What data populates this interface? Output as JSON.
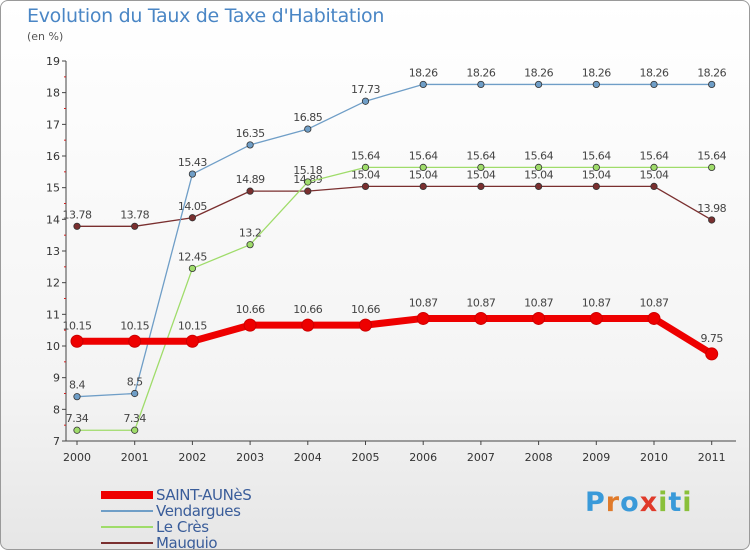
{
  "title": "Evolution du Taux de Taxe d'Habitation",
  "unit": "(en %)",
  "logo": {
    "text": "Proxiti",
    "colors": [
      "#3a9ad9",
      "#e07a2a",
      "#3a9ad9",
      "#e03a2a",
      "#8ac03a",
      "#3a9ad9",
      "#8ac03a"
    ]
  },
  "chart_data": {
    "type": "line",
    "x": [
      "2000",
      "2001",
      "2002",
      "2003",
      "2004",
      "2005",
      "2006",
      "2007",
      "2008",
      "2009",
      "2010",
      "2011"
    ],
    "ylim": [
      7,
      19
    ],
    "yticks": [
      "7",
      "8",
      "9",
      "10",
      "11",
      "12",
      "13",
      "14",
      "15",
      "16",
      "17",
      "18",
      "19"
    ],
    "grid": false,
    "legend_position": "bottom-left",
    "series": [
      {
        "name": "SAINT-AUNèS",
        "color": "#ee0000",
        "values": [
          10.15,
          10.15,
          10.15,
          10.66,
          10.66,
          10.66,
          10.87,
          10.87,
          10.87,
          10.87,
          10.87,
          9.75
        ],
        "labels": [
          "10.15",
          "10.15",
          "10.15",
          "10.66",
          "10.66",
          "10.66",
          "10.87",
          "10.87",
          "10.87",
          "10.87",
          "10.87",
          "9.75"
        ]
      },
      {
        "name": "Vendargues",
        "color": "#6f9ec7",
        "values": [
          8.4,
          8.5,
          15.43,
          16.35,
          16.85,
          17.73,
          18.26,
          18.26,
          18.26,
          18.26,
          18.26,
          18.26
        ],
        "labels": [
          "8.4",
          "8.5",
          "15.43",
          "16.35",
          "16.85",
          "17.73",
          "18.26",
          "18.26",
          "18.26",
          "18.26",
          "18.26",
          "18.26"
        ]
      },
      {
        "name": "Le Crès",
        "color": "#9fdc6a",
        "values": [
          7.34,
          7.34,
          12.45,
          13.2,
          15.18,
          15.64,
          15.64,
          15.64,
          15.64,
          15.64,
          15.64,
          15.64
        ],
        "labels": [
          "7.34",
          "7.34",
          "12.45",
          "13.2",
          "15.18",
          "15.64",
          "15.64",
          "15.64",
          "15.64",
          "15.64",
          "15.64",
          "15.64"
        ]
      },
      {
        "name": "Mauguio",
        "color": "#7a2f2f",
        "values": [
          13.78,
          13.78,
          14.05,
          14.89,
          14.89,
          15.04,
          15.04,
          15.04,
          15.04,
          15.04,
          15.04,
          13.98
        ],
        "labels": [
          "13.78",
          "13.78",
          "14.05",
          "14.89",
          "14.89",
          "15.04",
          "15.04",
          "15.04",
          "15.04",
          "15.04",
          "15.04",
          "13.98"
        ]
      }
    ]
  }
}
